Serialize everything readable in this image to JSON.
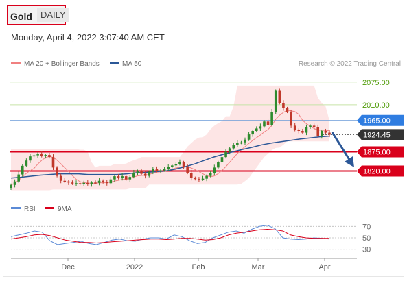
{
  "header": {
    "asset": "Gold",
    "period": "DAILY",
    "timestamp": "Monday, April 4, 2022 3:07:40 AM CET"
  },
  "legend": {
    "ma20": "MA 20 + Bollinger Bands",
    "ma50": "MA 50",
    "credit": "Research © 2022 Trading Central"
  },
  "rsi_legend": {
    "rsi": "RSI",
    "ma": "9MA"
  },
  "colors": {
    "up": "#2e8b2e",
    "down": "#c0392b",
    "ma20": "#f08080",
    "ma50": "#2b5797",
    "band": "#fde0e0",
    "resistance": "#c6e3a8",
    "blue_level": "#6b9bd8",
    "support": "#d9001b",
    "current": "#333333",
    "rsi": "#5b8ad6",
    "rsi_ma": "#d9001b"
  },
  "chart_data": {
    "type": "candlestick",
    "x_ticks": [
      "Dec",
      "2022",
      "Feb",
      "Mar",
      "Apr"
    ],
    "price_range": [
      1760,
      2110
    ],
    "levels": [
      {
        "value": 2075,
        "label": "2075.00",
        "kind": "resistance"
      },
      {
        "value": 2010,
        "label": "2010.00",
        "kind": "resistance"
      },
      {
        "value": 1965,
        "label": "1965.00",
        "kind": "blue"
      },
      {
        "value": 1924.45,
        "label": "1924.45",
        "kind": "current"
      },
      {
        "value": 1875,
        "label": "1875.00",
        "kind": "support"
      },
      {
        "value": 1820,
        "label": "1820.00",
        "kind": "support"
      }
    ],
    "close_series": [
      1780,
      1790,
      1810,
      1835,
      1850,
      1862,
      1865,
      1868,
      1863,
      1866,
      1860,
      1830,
      1806,
      1792,
      1790,
      1787,
      1784,
      1785,
      1783,
      1786,
      1782,
      1787,
      1786,
      1792,
      1788,
      1785,
      1796,
      1805,
      1800,
      1805,
      1796,
      1803,
      1815,
      1820,
      1812,
      1806,
      1818,
      1825,
      1820,
      1822,
      1826,
      1832,
      1836,
      1840,
      1845,
      1833,
      1815,
      1800,
      1797,
      1796,
      1798,
      1806,
      1815,
      1830,
      1845,
      1860,
      1875,
      1885,
      1895,
      1901,
      1902,
      1910,
      1925,
      1935,
      1942,
      1948,
      1962,
      1952,
      1990,
      2050,
      2015,
      2000,
      1990,
      1950,
      1938,
      1935,
      1930,
      1945,
      1950,
      1945,
      1920,
      1935,
      1930,
      1924
    ],
    "ma50": [
      1800,
      1802,
      1805,
      1808,
      1810,
      1812,
      1812,
      1812,
      1810,
      1810,
      1810,
      1810,
      1812,
      1815,
      1816,
      1818,
      1820,
      1825,
      1832,
      1840,
      1850,
      1860,
      1868,
      1875,
      1882,
      1888,
      1895,
      1900,
      1904,
      1908,
      1912,
      1915,
      1918,
      1920
    ],
    "rsi_scale": [
      "70",
      "50",
      "30"
    ],
    "rsi": [
      52,
      55,
      58,
      62,
      60,
      45,
      38,
      40,
      42,
      44,
      40,
      38,
      42,
      46,
      48,
      45,
      44,
      48,
      50,
      50,
      48,
      55,
      52,
      45,
      40,
      42,
      50,
      55,
      60,
      62,
      58,
      65,
      70,
      72,
      66,
      50,
      48,
      47,
      48,
      50,
      49,
      48
    ],
    "rsi_ma": [
      48,
      50,
      52,
      55,
      56,
      54,
      50,
      46,
      44,
      42,
      42,
      41,
      42,
      43,
      44,
      45,
      46,
      47,
      48,
      48,
      47,
      48,
      49,
      49,
      48,
      46,
      47,
      50,
      55,
      58,
      60,
      62,
      64,
      65,
      64,
      62,
      55,
      52,
      50,
      49,
      49,
      49
    ]
  }
}
